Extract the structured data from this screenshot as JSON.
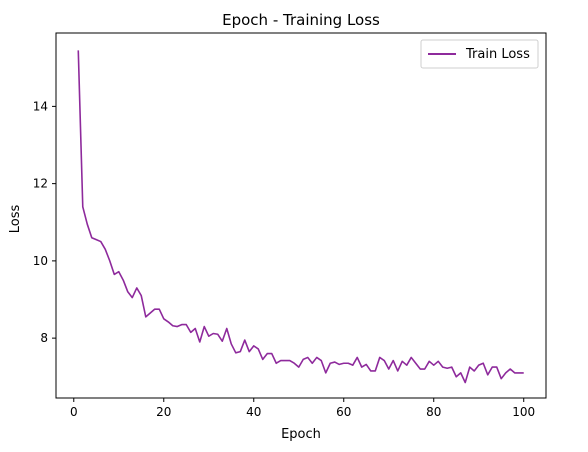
{
  "chart_data": {
    "type": "line",
    "title": "Epoch - Training Loss",
    "xlabel": "Epoch",
    "ylabel": "Loss",
    "xlim": [
      -3.95,
      104.95
    ],
    "ylim": [
      6.45,
      15.9
    ],
    "xticks": [
      0,
      20,
      40,
      60,
      80,
      100
    ],
    "yticks": [
      8,
      10,
      12,
      14
    ],
    "grid": false,
    "legend_position": "top-right",
    "series": [
      {
        "name": "Train Loss",
        "color": "#8e2a9c",
        "x": [
          1,
          2,
          3,
          4,
          5,
          6,
          7,
          8,
          9,
          10,
          11,
          12,
          13,
          14,
          15,
          16,
          17,
          18,
          19,
          20,
          21,
          22,
          23,
          24,
          25,
          26,
          27,
          28,
          29,
          30,
          31,
          32,
          33,
          34,
          35,
          36,
          37,
          38,
          39,
          40,
          41,
          42,
          43,
          44,
          45,
          46,
          47,
          48,
          49,
          50,
          51,
          52,
          53,
          54,
          55,
          56,
          57,
          58,
          59,
          60,
          61,
          62,
          63,
          64,
          65,
          66,
          67,
          68,
          69,
          70,
          71,
          72,
          73,
          74,
          75,
          76,
          77,
          78,
          79,
          80,
          81,
          82,
          83,
          84,
          85,
          86,
          87,
          88,
          89,
          90,
          91,
          92,
          93,
          94,
          95,
          96,
          97,
          98,
          99,
          100
        ],
        "values": [
          15.45,
          11.4,
          10.95,
          10.6,
          10.55,
          10.5,
          10.3,
          10.0,
          9.65,
          9.72,
          9.5,
          9.2,
          9.05,
          9.3,
          9.1,
          8.55,
          8.65,
          8.75,
          8.75,
          8.5,
          8.42,
          8.32,
          8.3,
          8.35,
          8.35,
          8.15,
          8.25,
          7.9,
          8.3,
          8.05,
          8.12,
          8.1,
          7.92,
          8.25,
          7.85,
          7.62,
          7.65,
          7.95,
          7.65,
          7.8,
          7.72,
          7.45,
          7.6,
          7.6,
          7.35,
          7.42,
          7.42,
          7.42,
          7.35,
          7.25,
          7.45,
          7.5,
          7.35,
          7.5,
          7.42,
          7.1,
          7.35,
          7.38,
          7.32,
          7.35,
          7.35,
          7.3,
          7.5,
          7.25,
          7.32,
          7.15,
          7.15,
          7.5,
          7.42,
          7.2,
          7.42,
          7.15,
          7.4,
          7.3,
          7.5,
          7.35,
          7.2,
          7.2,
          7.4,
          7.3,
          7.4,
          7.25,
          7.22,
          7.25,
          7.0,
          7.1,
          6.85,
          7.25,
          7.15,
          7.3,
          7.35,
          7.05,
          7.25,
          7.25,
          6.95,
          7.1,
          7.2,
          7.1,
          7.1,
          7.1
        ]
      }
    ]
  }
}
